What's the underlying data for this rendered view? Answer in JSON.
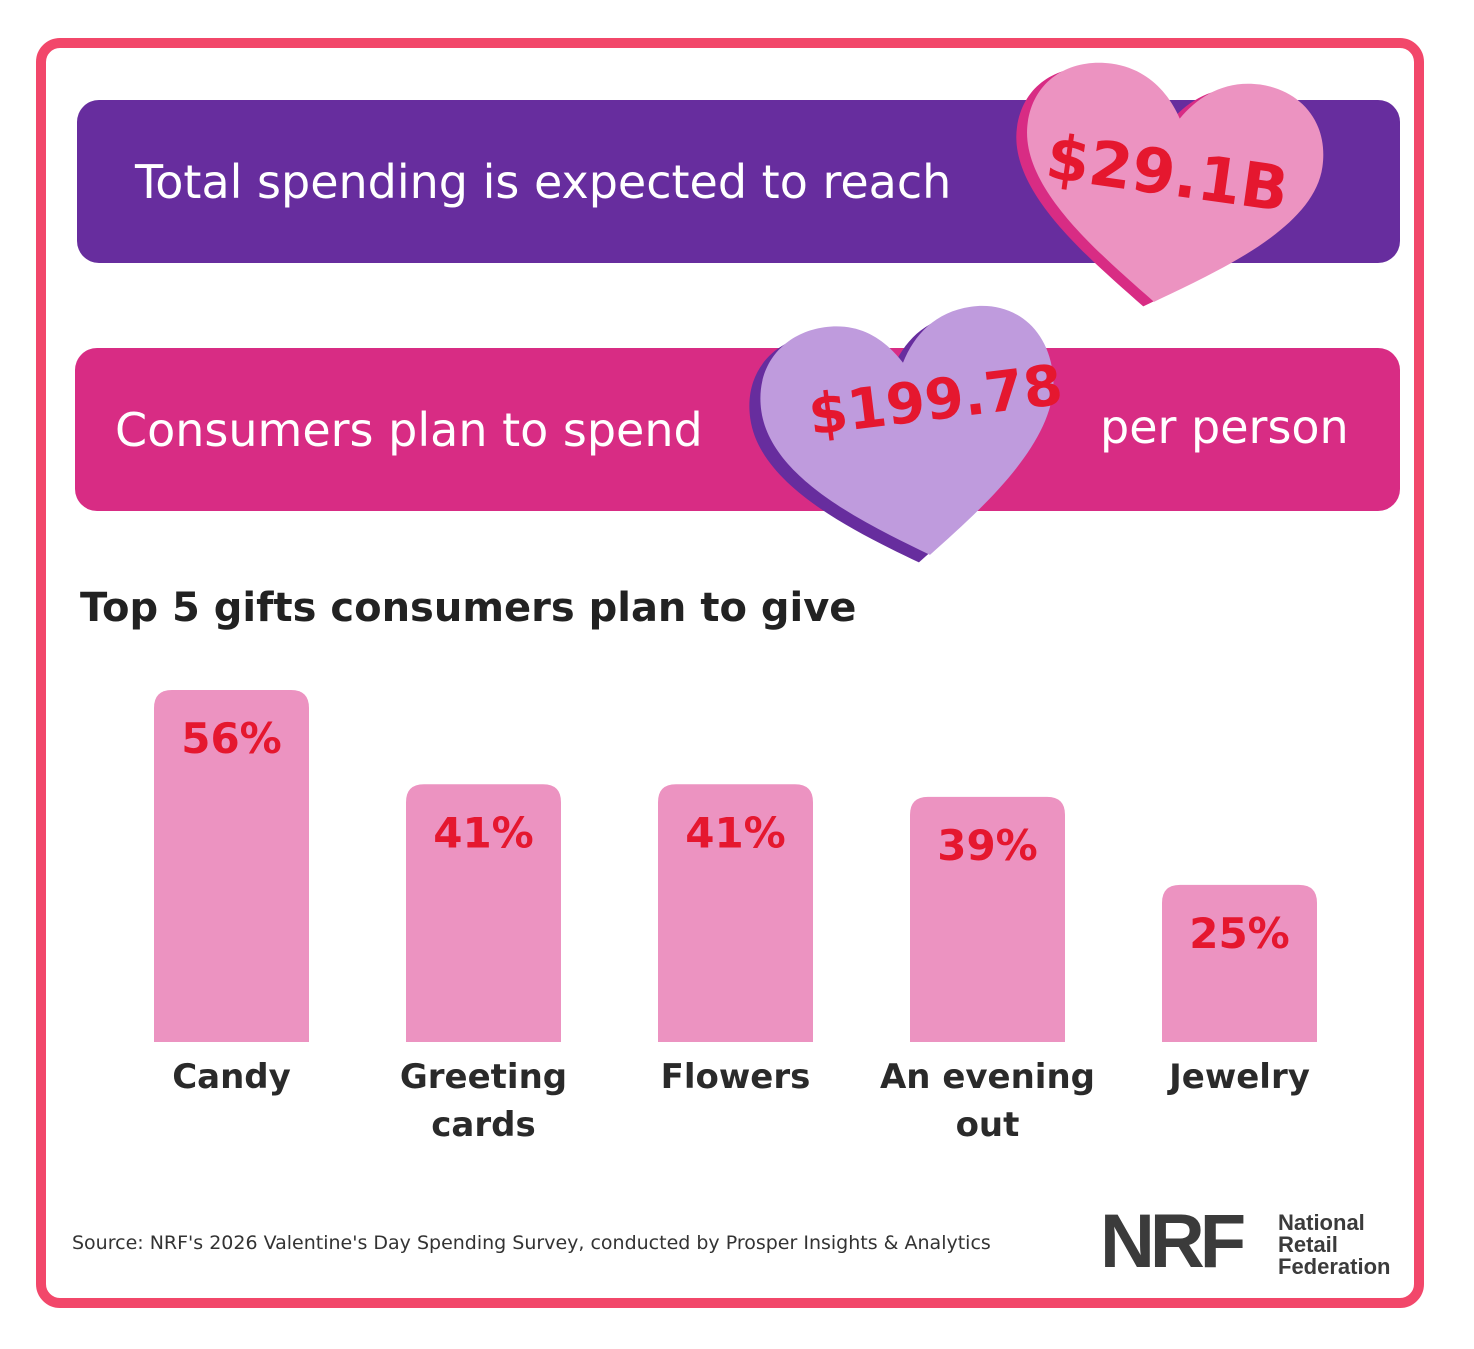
{
  "banner1": {
    "text": "Total spending is expected to reach",
    "value": "$29.1B"
  },
  "banner2": {
    "prefix": "Consumers plan to spend",
    "value": "$199.78",
    "suffix": "per person"
  },
  "colors": {
    "frame": "#f2476a",
    "banner1_bg": "#672d9e",
    "banner2_bg": "#d82c84",
    "heart_pink": "#ec93c1",
    "heart_purple": "#bf9bdd",
    "bar": "#ec93c1",
    "value_text": "#e5172f"
  },
  "subtitle": "Top 5 gifts consumers plan to give",
  "chart_data": {
    "type": "bar",
    "title": "Top 5 gifts consumers plan to give",
    "categories": [
      "Candy",
      "Greeting cards",
      "Flowers",
      "An evening out",
      "Jewelry"
    ],
    "category_lines": [
      [
        "Candy"
      ],
      [
        "Greeting",
        "cards"
      ],
      [
        "Flowers"
      ],
      [
        "An evening",
        "out"
      ],
      [
        "Jewelry"
      ]
    ],
    "values": [
      56,
      41,
      41,
      39,
      25
    ],
    "value_labels": [
      "56%",
      "41%",
      "41%",
      "39%",
      "25%"
    ],
    "unit": "%",
    "ylim": [
      0,
      56
    ],
    "grid": false,
    "legend": "none"
  },
  "footer": {
    "source": "Source: NRF's 2026 Valentine's Day Spending Survey, conducted by Prosper Insights & Analytics",
    "logo_mark": "NRF",
    "logo_words": [
      "National",
      "Retail",
      "Federation"
    ]
  }
}
